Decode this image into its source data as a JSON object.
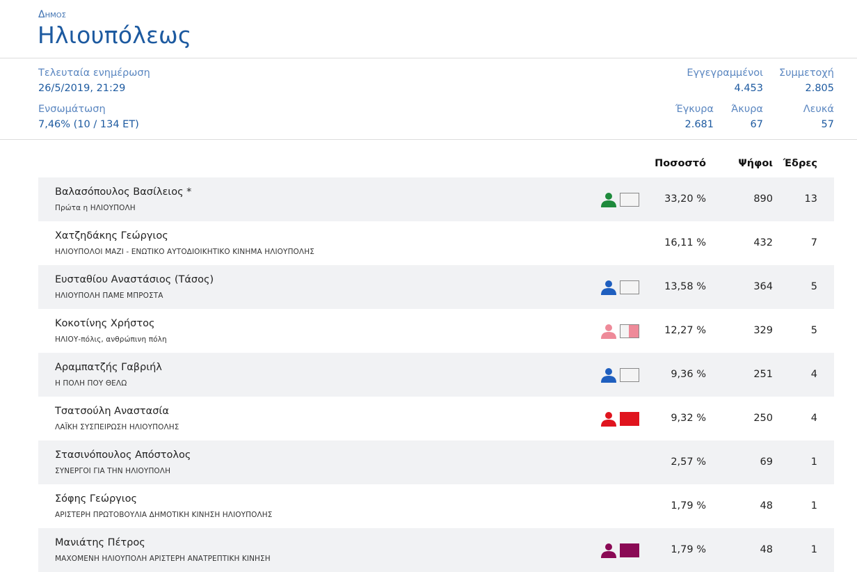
{
  "header": {
    "type_label": "Δημος",
    "name": "Ηλιουπόλεως"
  },
  "stats": {
    "last_update_label": "Τελευταία ενημέρωση",
    "last_update_value": "26/5/2019, 21:29",
    "integration_label": "Ενσωμάτωση",
    "integration_value": "7,46% (10 / 134 ΕΤ)",
    "registered_label": "Εγγεγραμμένοι",
    "registered_value": "4.453",
    "turnout_label": "Συμμετοχή",
    "turnout_value": "2.805",
    "valid_label": "Έγκυρα",
    "valid_value": "2.681",
    "invalid_label": "Άκυρα",
    "invalid_value": "67",
    "blank_label": "Λευκά",
    "blank_value": "57"
  },
  "columns": {
    "percent": "Ποσοστό",
    "votes": "Ψήφοι",
    "seats": "Έδρες"
  },
  "candidates": [
    {
      "name": "Βαλασόπουλος Βασίλειος *",
      "party": "Πρώτα η ΗΛΙΟΥΠΟΛΗ",
      "percent": "33,20 %",
      "votes": "890",
      "seats": "13",
      "icon_color": "#1e8a3c",
      "box_fill_color": "",
      "box_fill_fraction": 0
    },
    {
      "name": "Χατζηδάκης Γεώργιος",
      "party": "ΗΛΙΟΥΠΟΛΟΙ ΜΑΖΙ - ΕΝΩΤΙΚΟ ΑΥΤΟΔΙΟΙΚΗΤΙΚΟ ΚΙΝΗΜΑ ΗΛΙΟΥΠΟΛΗΣ",
      "percent": "16,11 %",
      "votes": "432",
      "seats": "7",
      "icon_color": "",
      "box_fill_color": "",
      "box_fill_fraction": 0
    },
    {
      "name": "Ευσταθίου Αναστάσιος (Τάσος)",
      "party": "ΗΛΙΟΥΠΟΛΗ ΠΑΜΕ ΜΠΡΟΣΤΑ",
      "percent": "13,58 %",
      "votes": "364",
      "seats": "5",
      "icon_color": "#1f5fbf",
      "box_fill_color": "",
      "box_fill_fraction": 0
    },
    {
      "name": "Κοκοτίνης Χρήστος",
      "party": "ΗΛΙΟΥ-πόλις, ανθρώπινη πόλη",
      "percent": "12,27 %",
      "votes": "329",
      "seats": "5",
      "icon_color": "#ee8a99",
      "box_fill_color": "#ee8a99",
      "box_fill_fraction": 0.55
    },
    {
      "name": "Αραμπατζής Γαβριήλ",
      "party": "Η ΠΟΛΗ ΠΟΥ ΘΕΛΩ",
      "percent": "9,36 %",
      "votes": "251",
      "seats": "4",
      "icon_color": "#1f5fbf",
      "box_fill_color": "",
      "box_fill_fraction": 0
    },
    {
      "name": "Τσατσούλη Αναστασία",
      "party": "ΛΑΪΚΗ ΣΥΣΠΕΙΡΩΣΗ ΗΛΙΟΥΠΟΛΗΣ",
      "percent": "9,32 %",
      "votes": "250",
      "seats": "4",
      "icon_color": "#e0141e",
      "box_fill_color": "#e0141e",
      "box_fill_fraction": 1
    },
    {
      "name": "Στασινόπουλος Απόστολος",
      "party": "ΣΥΝΕΡΓΟΙ ΓΙΑ ΤΗΝ ΗΛΙΟΥΠΟΛΗ",
      "percent": "2,57 %",
      "votes": "69",
      "seats": "1",
      "icon_color": "",
      "box_fill_color": "",
      "box_fill_fraction": 0
    },
    {
      "name": "Σόφης Γεώργιος",
      "party": "ΑΡΙΣΤΕΡΗ ΠΡΩΤΟΒΟΥΛΙΑ ΔΗΜΟΤΙΚΗ ΚΙΝΗΣΗ ΗΛΙΟΥΠΟΛΗΣ",
      "percent": "1,79 %",
      "votes": "48",
      "seats": "1",
      "icon_color": "",
      "box_fill_color": "",
      "box_fill_fraction": 0
    },
    {
      "name": "Μανιάτης Πέτρος",
      "party": "ΜΑΧΟΜΕΝΗ ΗΛΙΟΥΠΟΛΗ ΑΡΙΣΤΕΡΗ ΑΝΑΤΡΕΠΤΙΚΗ ΚΙΝΗΣΗ",
      "percent": "1,79 %",
      "votes": "48",
      "seats": "1",
      "icon_color": "#8a0a55",
      "box_fill_color": "#8a0a55",
      "box_fill_fraction": 1
    }
  ]
}
